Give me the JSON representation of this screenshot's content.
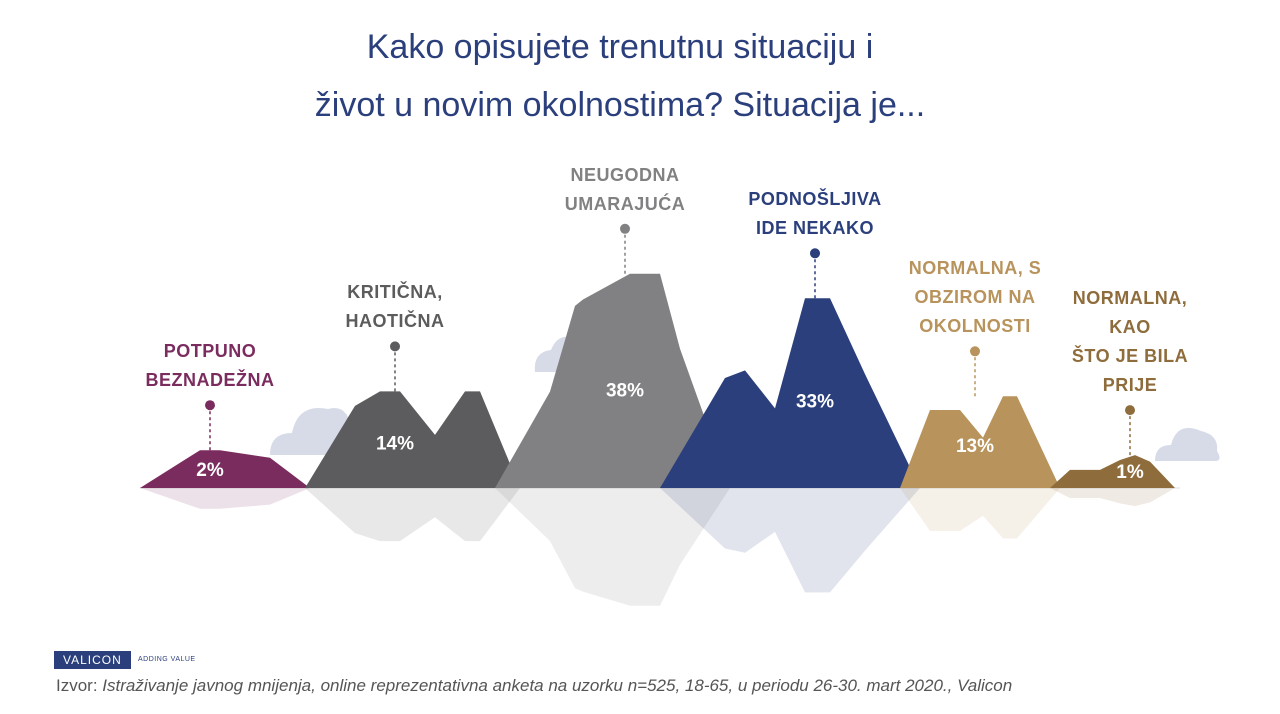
{
  "chart_data": {
    "type": "mountain",
    "title": "Kako opisujete trenutnu situaciju i\nživot u novim okolnostima? Situacija je...",
    "categories": [
      "POTPUNO\nBEZNADEŽNA",
      "KRITIČNA,\nHAOTIČNA",
      "NEUGODNA\nUMARAJUĆA",
      "PODNOŠLJIVA\nIDE NEKAKO",
      "NORMALNA, S\nOBZIROM NA\nOKOLNOSTI",
      "NORMALNA, KAO\nŠTO JE BILA PRIJE"
    ],
    "values": [
      2,
      14,
      38,
      33,
      13,
      1
    ],
    "value_labels": [
      "2%",
      "14%",
      "38%",
      "33%",
      "13%",
      "1%"
    ],
    "colors": [
      "#7b2c5e",
      "#5c5c5e",
      "#818183",
      "#2b3f7c",
      "#b8935c",
      "#8e6c3c"
    ],
    "logo": "VALICON",
    "tagline": "ADDING VALUE",
    "source_prefix": "Izvor:",
    "source": "Istraživanje javnog mnijenja, online reprezentativna anketa na uzorku n=525, 18-65, u periodu 26-30. mart 2020., Valicon"
  }
}
